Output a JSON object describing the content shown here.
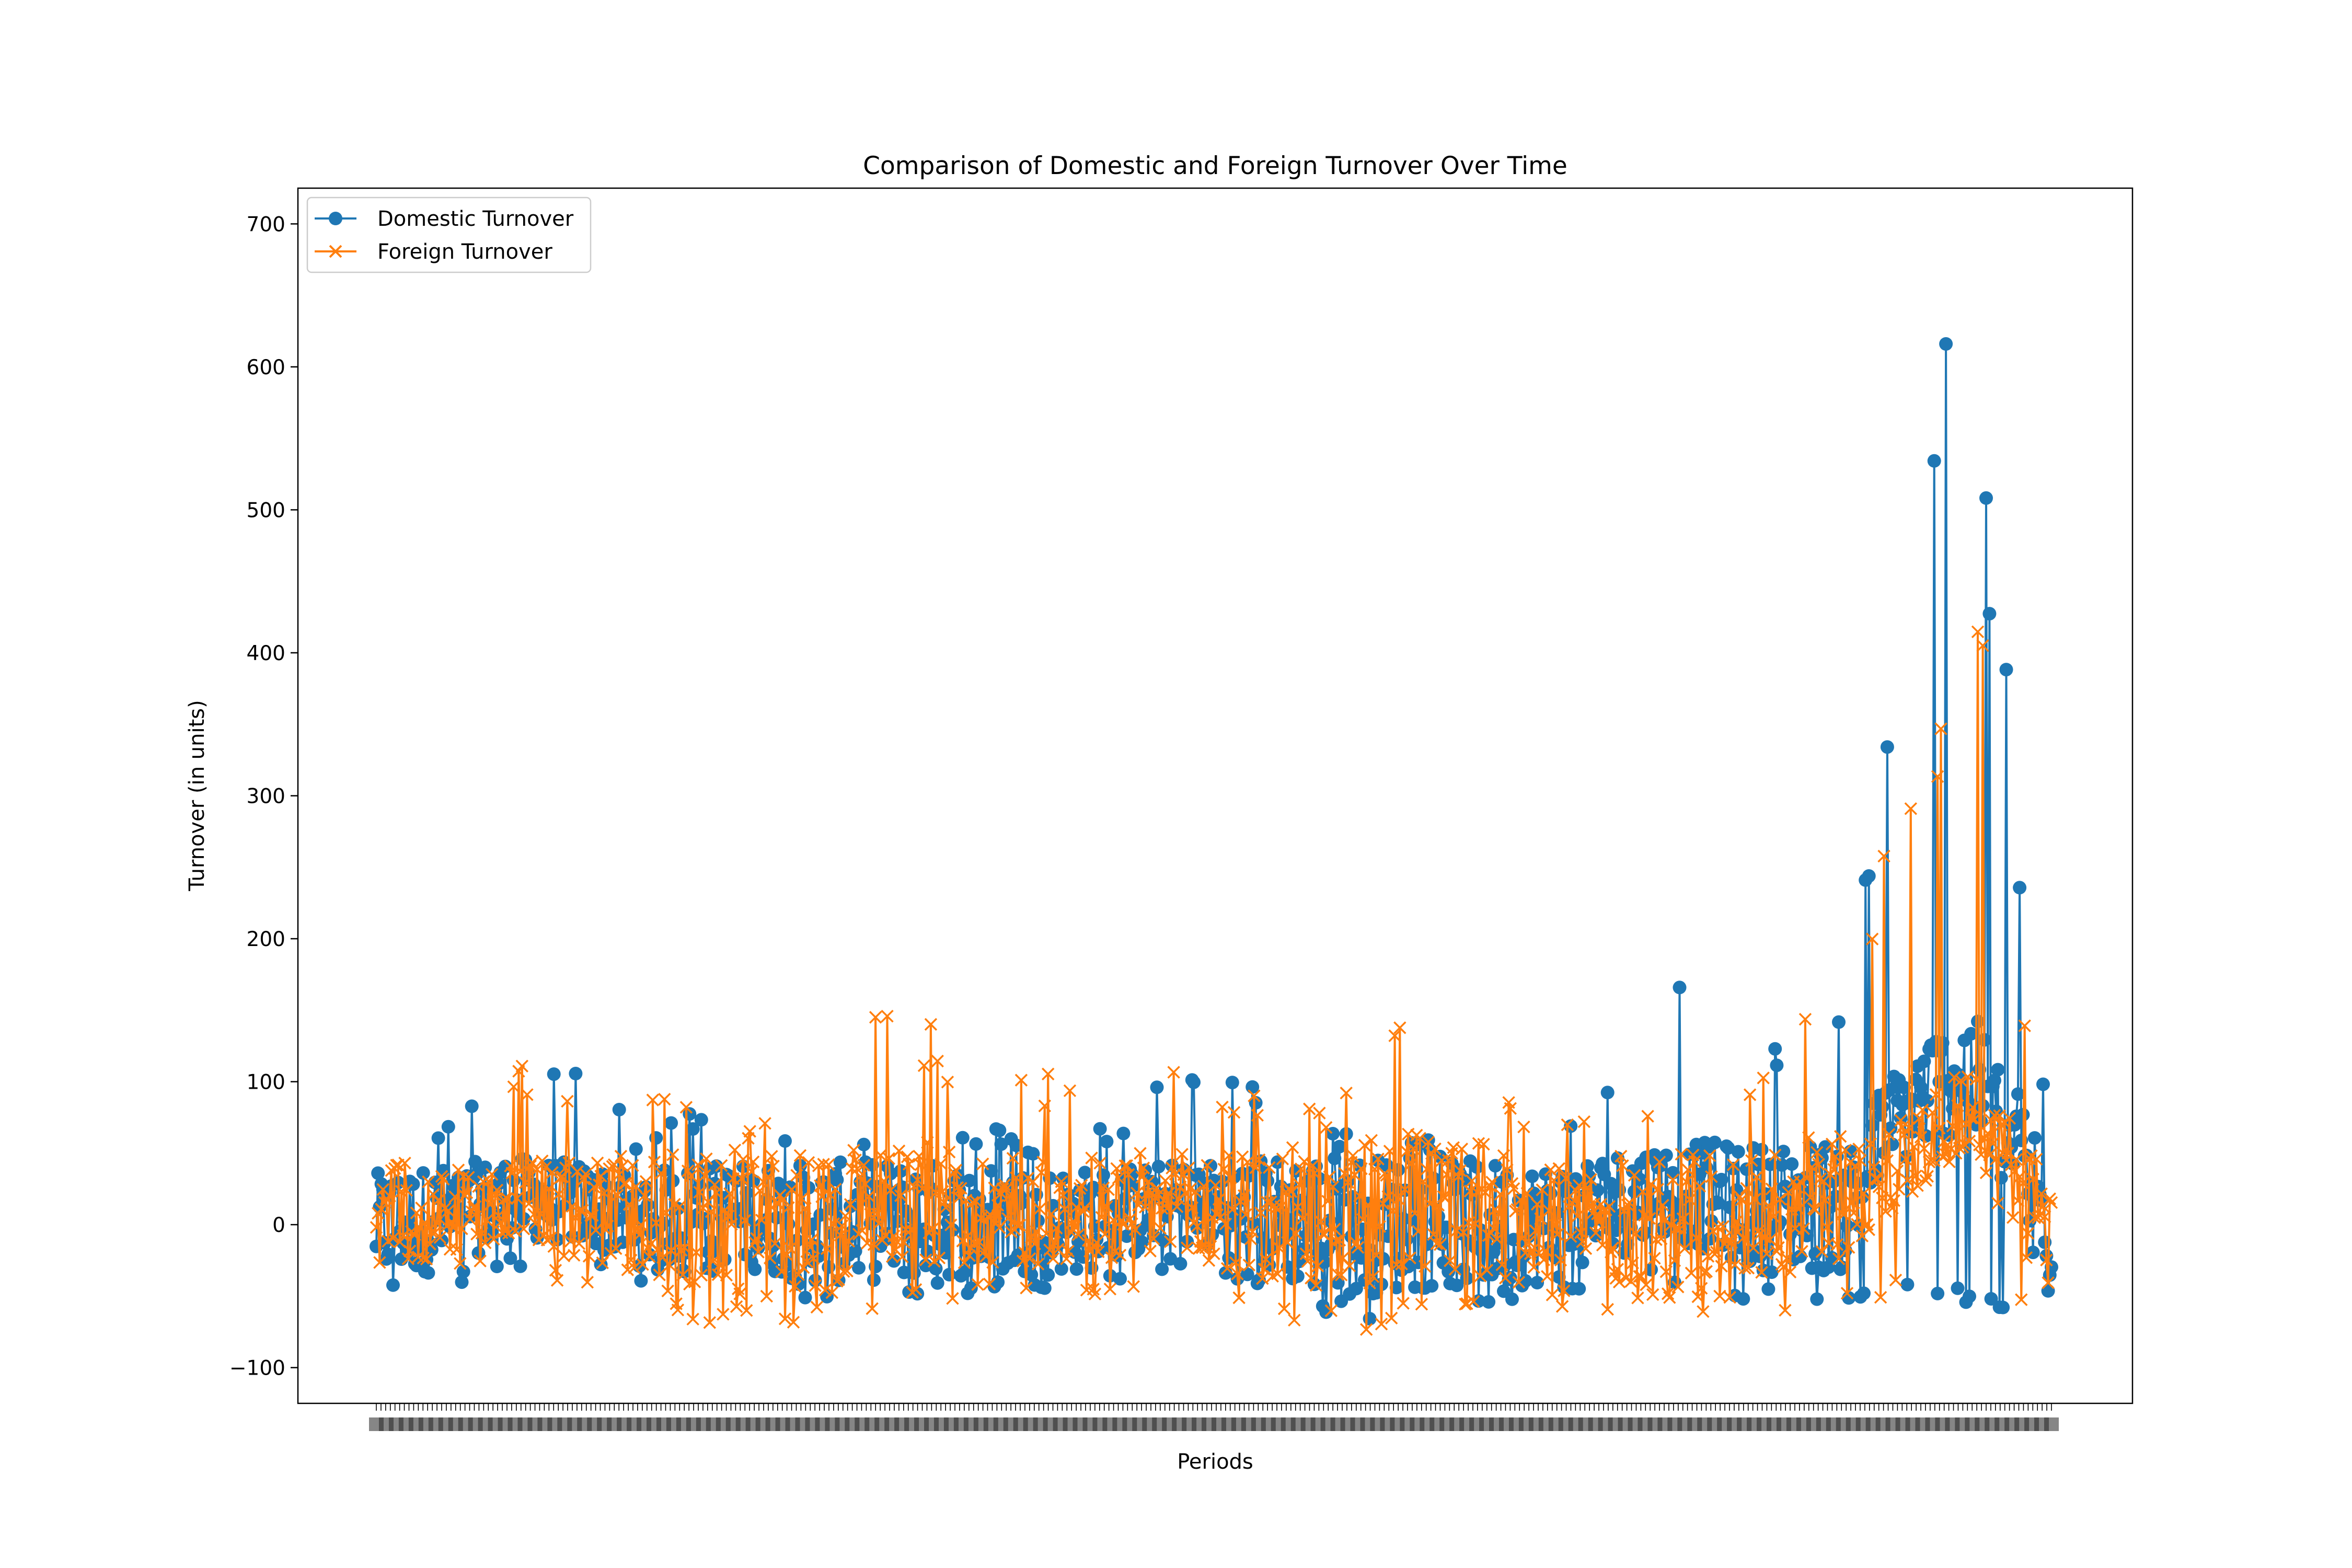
{
  "chart_data": {
    "type": "line",
    "title": "Comparison of Domestic and Foreign Turnover Over Time",
    "xlabel": "Periods",
    "ylabel": "Turnover (in units)",
    "ylim": [
      -125,
      725
    ],
    "y_ticks": [
      -100,
      0,
      100,
      200,
      300,
      400,
      500,
      600,
      700
    ],
    "y_tick_labels": [
      "−100",
      "0",
      "100",
      "200",
      "300",
      "400",
      "500",
      "600",
      "700"
    ],
    "x_tick_labels_note": "Dense, overlapping period tick labels (illegible)",
    "legend_placement": "upper-left",
    "grid": false,
    "series": [
      {
        "name": "Domestic Turnover",
        "color": "#1f77b4",
        "marker": "circle"
      },
      {
        "name": "Foreign Turnover",
        "color": "#ff7f0e",
        "marker": "x"
      }
    ],
    "envelope": {
      "note": "Approximate per-segment ranges of the two noisy series (index 0-1000)",
      "domestic": [
        {
          "x": 0,
          "lo": -50,
          "hi": 45
        },
        {
          "x": 40,
          "lo": -45,
          "hi": 70
        },
        {
          "x": 80,
          "lo": -30,
          "hi": 140
        },
        {
          "x": 120,
          "lo": -30,
          "hi": 115
        },
        {
          "x": 160,
          "lo": -40,
          "hi": 60
        },
        {
          "x": 200,
          "lo": -40,
          "hi": 95
        },
        {
          "x": 260,
          "lo": -55,
          "hi": 60
        },
        {
          "x": 300,
          "lo": -55,
          "hi": 70
        },
        {
          "x": 360,
          "lo": -50,
          "hi": 70
        },
        {
          "x": 420,
          "lo": -45,
          "hi": 60
        },
        {
          "x": 480,
          "lo": -30,
          "hi": 115
        },
        {
          "x": 520,
          "lo": -45,
          "hi": 100
        },
        {
          "x": 560,
          "lo": -70,
          "hi": 75
        },
        {
          "x": 620,
          "lo": -65,
          "hi": 60
        },
        {
          "x": 700,
          "lo": -55,
          "hi": 60
        },
        {
          "x": 770,
          "lo": -40,
          "hi": 185
        },
        {
          "x": 830,
          "lo": -60,
          "hi": 125
        },
        {
          "x": 880,
          "lo": -65,
          "hi": 145
        },
        {
          "x": 900,
          "lo": -40,
          "hi": 420
        },
        {
          "x": 930,
          "lo": -50,
          "hi": 610
        },
        {
          "x": 950,
          "lo": -60,
          "hi": 685
        },
        {
          "x": 975,
          "lo": -60,
          "hi": 400
        },
        {
          "x": 985,
          "lo": -90,
          "hi": 235
        },
        {
          "x": 1000,
          "lo": -100,
          "hi": 45
        }
      ],
      "foreign": [
        {
          "x": 0,
          "lo": -35,
          "hi": 40
        },
        {
          "x": 80,
          "lo": -30,
          "hi": 115
        },
        {
          "x": 200,
          "lo": -70,
          "hi": 95
        },
        {
          "x": 260,
          "lo": -75,
          "hi": 50
        },
        {
          "x": 300,
          "lo": -60,
          "hi": 175
        },
        {
          "x": 360,
          "lo": -50,
          "hi": 110
        },
        {
          "x": 480,
          "lo": -50,
          "hi": 110
        },
        {
          "x": 560,
          "lo": -80,
          "hi": 80
        },
        {
          "x": 620,
          "lo": -70,
          "hi": 155
        },
        {
          "x": 700,
          "lo": -60,
          "hi": 75
        },
        {
          "x": 800,
          "lo": -65,
          "hi": 80
        },
        {
          "x": 880,
          "lo": -60,
          "hi": 180
        },
        {
          "x": 930,
          "lo": -35,
          "hi": 400
        },
        {
          "x": 950,
          "lo": -35,
          "hi": 505
        },
        {
          "x": 975,
          "lo": -50,
          "hi": 265
        },
        {
          "x": 985,
          "lo": -60,
          "hi": 150
        },
        {
          "x": 1000,
          "lo": -70,
          "hi": 40
        }
      ]
    }
  }
}
